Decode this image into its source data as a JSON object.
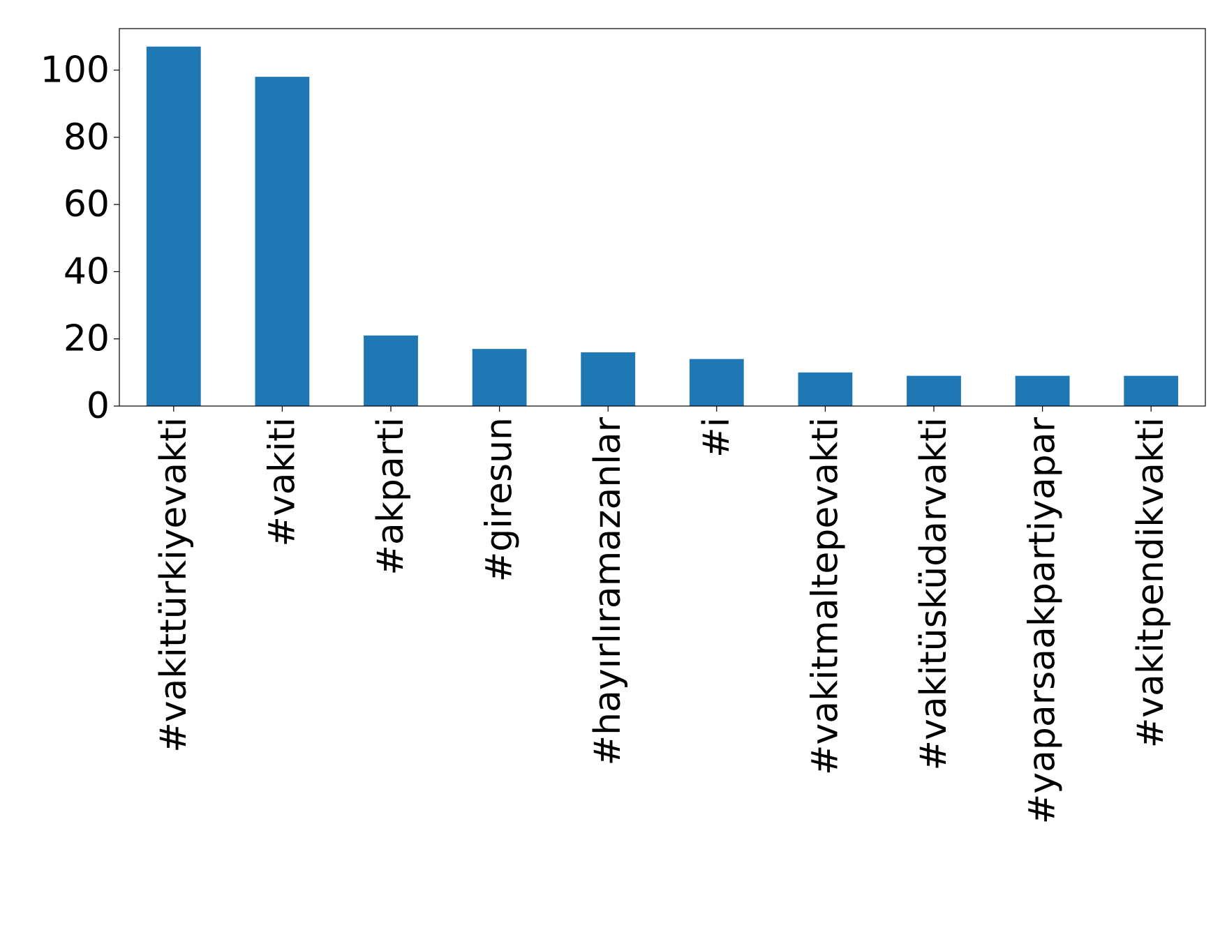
{
  "chart_data": {
    "type": "bar",
    "title": "",
    "xlabel": "",
    "ylabel": "",
    "categories": [
      "#vakittürkiyevakti",
      "#vakiti",
      "#akparti",
      "#giresun",
      "#hayırlıramazanlar",
      "#i",
      "#vakitmaltepevakti",
      "#vakitüsküdarvakti",
      "#yaparsaakpartiyapar",
      "#vakitpendikvakti"
    ],
    "values": [
      107,
      98,
      21,
      17,
      16,
      14,
      10,
      9,
      9,
      9
    ],
    "ylim": [
      0,
      112.35
    ],
    "yticks": [
      0,
      20,
      40,
      60,
      80,
      100
    ],
    "grid": false,
    "legend": "none",
    "bar_color": "#1f77b4"
  }
}
